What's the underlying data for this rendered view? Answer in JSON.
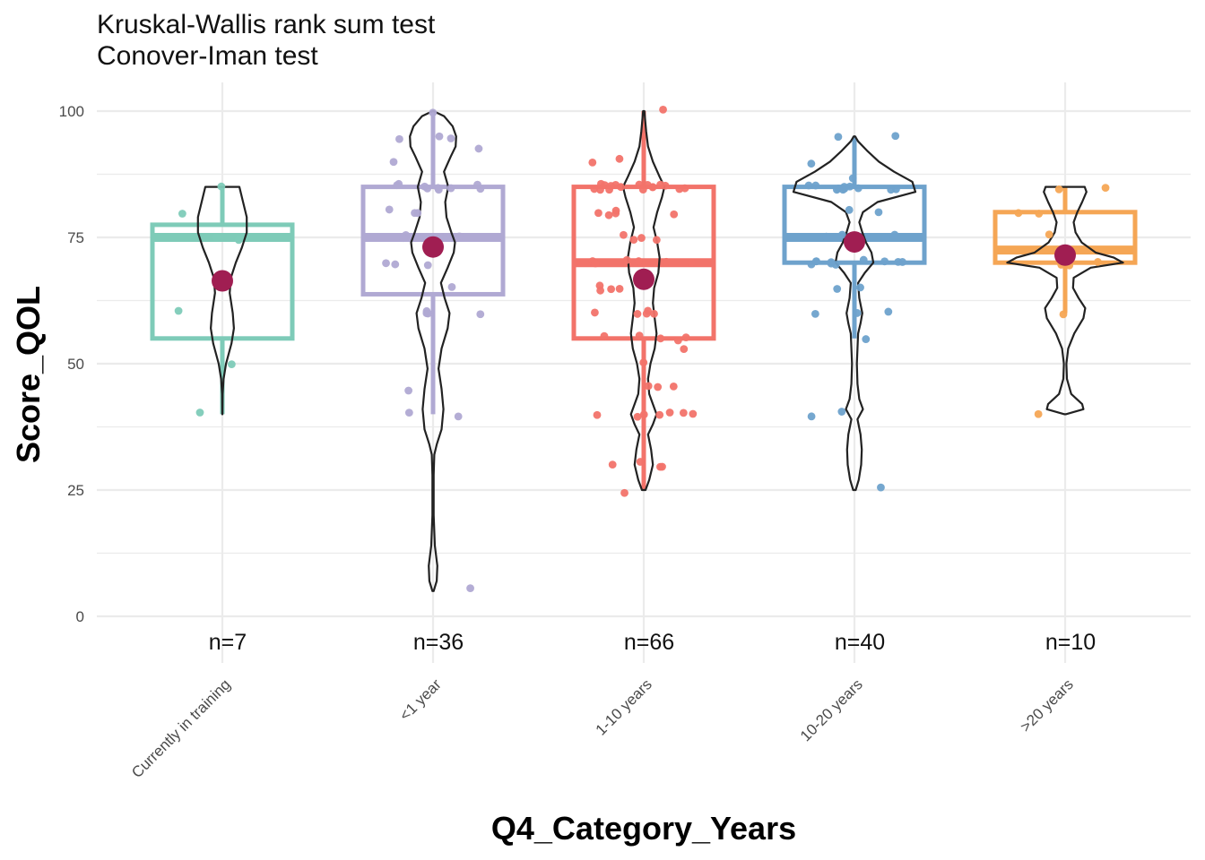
{
  "chart_data": {
    "type": "violin-box",
    "subtitle_lines": [
      "Kruskal-Wallis rank sum test",
      "Conover-Iman test"
    ],
    "xlabel": "Q4_Category_Years",
    "ylabel": "Score_QOL",
    "ylim": [
      0,
      100
    ],
    "yticks": [
      0,
      25,
      50,
      75,
      100
    ],
    "grid": true,
    "colors": {
      "Currently in training": "#7ecbb8",
      "<1 year": "#b0a9d3",
      "1-10 years": "#f2736a",
      "10-20 years": "#6ea2cc",
      ">20 years": "#f5a655",
      "mean": "#a01e52",
      "violin": "#222222"
    },
    "categories": [
      "Currently in training",
      "<1 year",
      "1-10 years",
      "10-20 years",
      ">20 years"
    ],
    "n_labels": [
      "n=7",
      "n=36",
      "n=66",
      "n=40",
      "n=10"
    ],
    "boxes": [
      {
        "min": 40,
        "q1": 55,
        "median": 75,
        "q3": 77.5,
        "max": 85,
        "mean": 66.4
      },
      {
        "min": 40,
        "q1": 63.75,
        "median": 75,
        "q3": 85,
        "max": 100,
        "mean": 73.1
      },
      {
        "min": 25,
        "q1": 55,
        "median": 70,
        "q3": 85,
        "max": 100,
        "mean": 66.7
      },
      {
        "min": 55,
        "q1": 70,
        "median": 75,
        "q3": 85,
        "max": 95,
        "mean": 74.1
      },
      {
        "min": 60,
        "q1": 70,
        "median": 72.5,
        "q3": 80,
        "max": 85,
        "mean": 71.5
      }
    ],
    "points": [
      [
        85,
        80,
        75,
        60,
        50,
        40,
        75
      ],
      [
        100,
        95,
        95,
        95,
        92,
        90,
        85,
        85,
        85,
        85,
        85,
        85,
        85,
        80,
        80,
        75,
        75,
        75,
        75,
        70,
        70,
        70,
        65,
        60,
        60,
        60,
        60,
        45,
        40,
        40,
        5,
        85,
        75,
        85,
        80,
        75
      ],
      [
        100,
        90,
        90,
        85,
        85,
        85,
        85,
        85,
        85,
        85,
        85,
        85,
        85,
        85,
        85,
        85,
        85,
        85,
        85,
        80,
        80,
        80,
        80,
        75,
        75,
        75,
        70,
        70,
        70,
        70,
        65,
        65,
        65,
        65,
        60,
        60,
        60,
        60,
        55,
        55,
        55,
        55,
        53,
        50,
        45,
        45,
        45,
        40,
        40,
        40,
        40,
        40,
        40,
        40,
        30,
        30,
        30,
        30,
        25,
        70,
        70,
        85,
        80,
        75,
        60,
        55
      ],
      [
        95,
        95,
        90,
        87,
        85,
        85,
        85,
        85,
        85,
        85,
        85,
        85,
        85,
        85,
        85,
        80,
        75,
        75,
        75,
        75,
        70,
        70,
        70,
        70,
        70,
        70,
        70,
        70,
        70,
        70,
        65,
        65,
        60,
        60,
        60,
        55,
        40,
        40,
        25,
        80
      ],
      [
        85,
        85,
        80,
        80,
        75,
        70,
        70,
        70,
        60,
        40
      ]
    ]
  }
}
